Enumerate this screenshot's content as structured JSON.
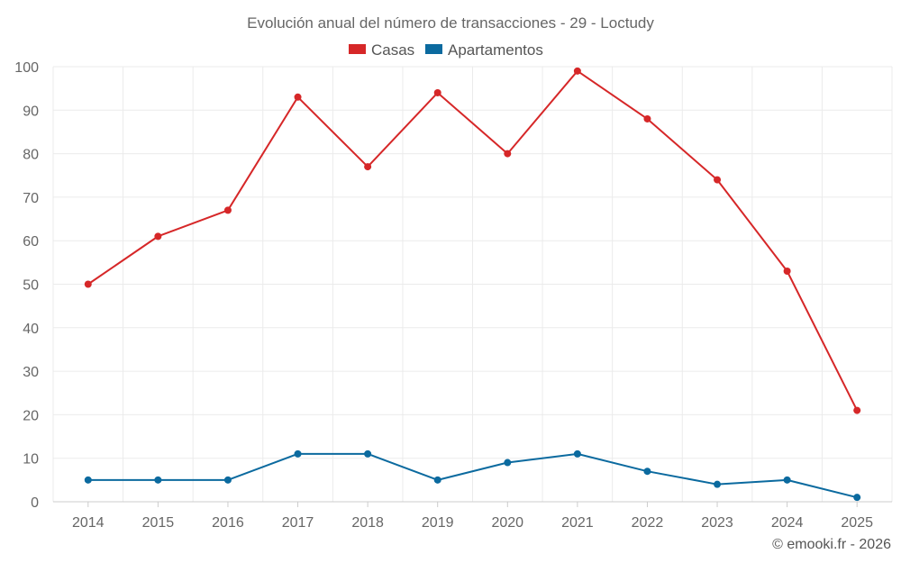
{
  "chart_data": {
    "type": "line",
    "title": "Evolución anual del número de transacciones - 29 - Loctudy",
    "categories": [
      "2014",
      "2015",
      "2016",
      "2017",
      "2018",
      "2019",
      "2020",
      "2021",
      "2022",
      "2023",
      "2024",
      "2025"
    ],
    "series": [
      {
        "name": "Casas",
        "color": "#d62728",
        "values": [
          50,
          61,
          67,
          93,
          77,
          94,
          80,
          99,
          88,
          74,
          53,
          21
        ]
      },
      {
        "name": "Apartamentos",
        "color": "#0b6a9f",
        "values": [
          5,
          5,
          5,
          11,
          11,
          5,
          9,
          11,
          7,
          4,
          5,
          1
        ]
      }
    ],
    "ylim": [
      0,
      100
    ],
    "yticks": [
      0,
      10,
      20,
      30,
      40,
      50,
      60,
      70,
      80,
      90,
      100
    ],
    "grid": true,
    "legend": "top-center"
  },
  "credit": "© emooki.fr - 2026"
}
